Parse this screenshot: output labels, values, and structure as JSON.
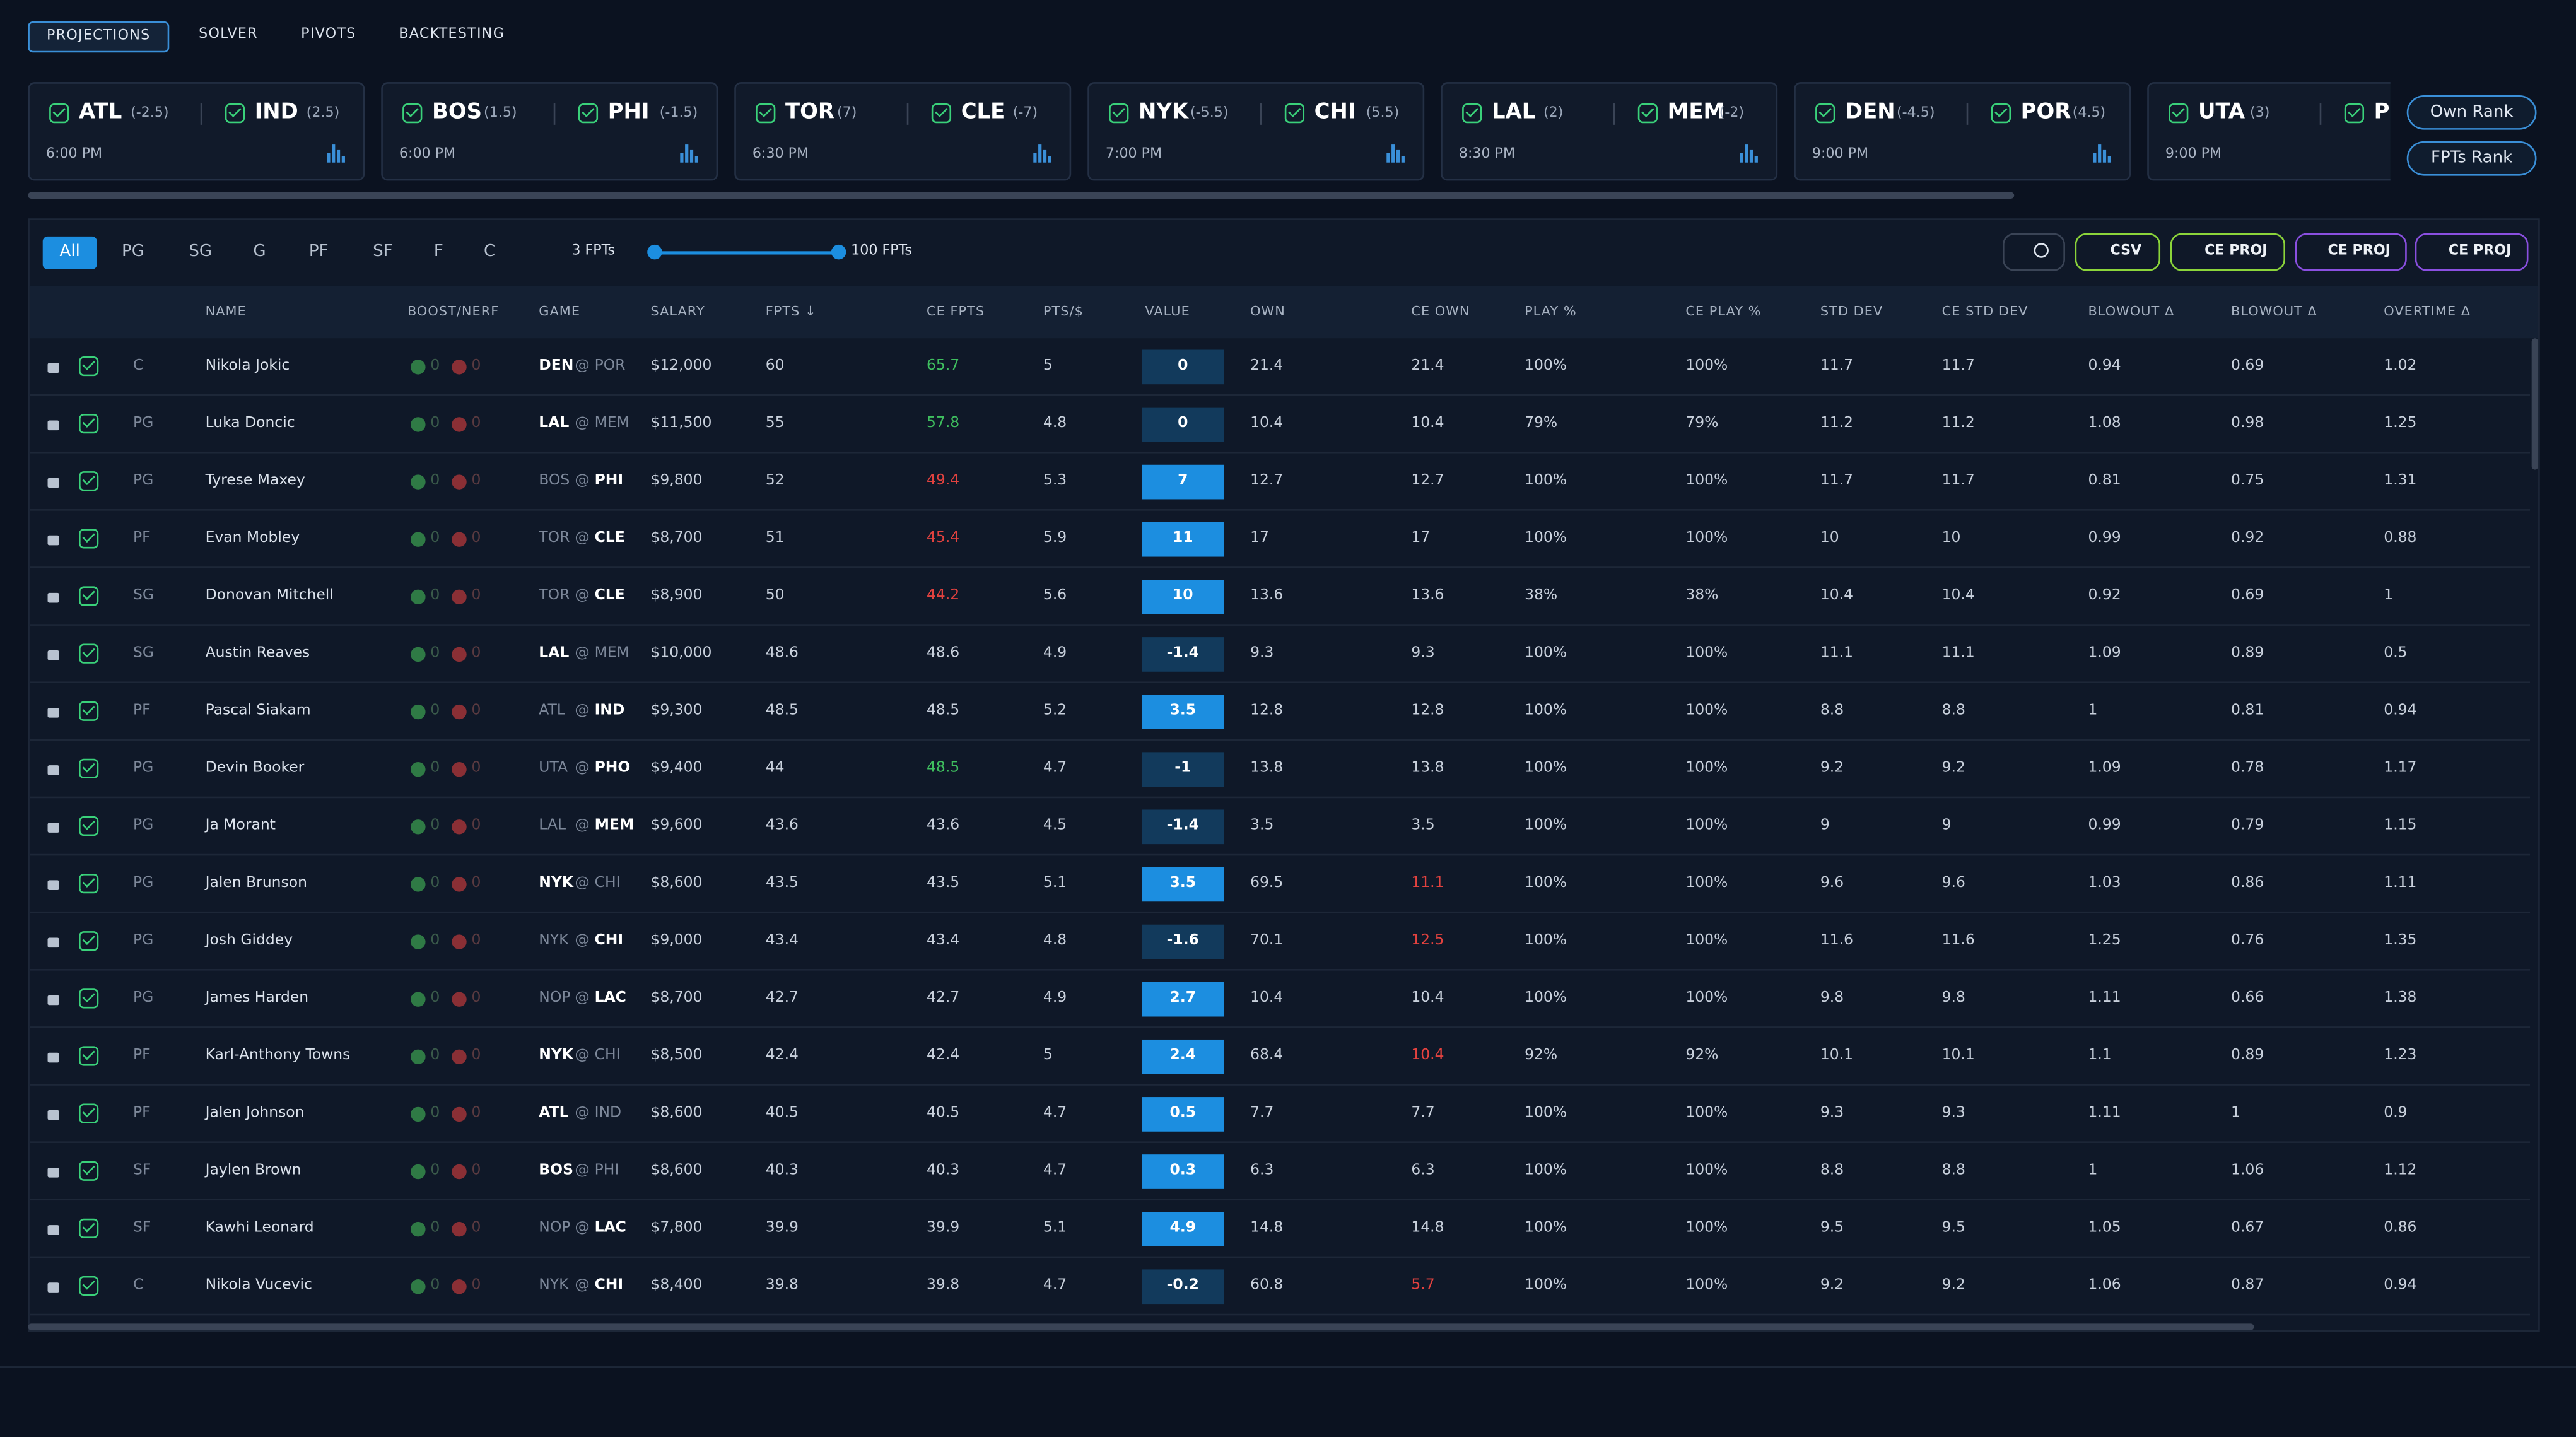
{
  "tabs": [
    "PROJECTIONS",
    "SOLVER",
    "PIVOTS",
    "BACKTESTING"
  ],
  "games": [
    {
      "teams": [
        {
          "name": "ATL",
          "spread": "(-2.5)"
        },
        {
          "name": "IND",
          "spread": "(2.5)"
        }
      ],
      "time": "6:00 PM"
    },
    {
      "teams": [
        {
          "name": "BOS",
          "spread": "(1.5)"
        },
        {
          "name": "PHI",
          "spread": "(-1.5)"
        }
      ],
      "time": "6:00 PM"
    },
    {
      "teams": [
        {
          "name": "TOR",
          "spread": "(7)"
        },
        {
          "name": "CLE",
          "spread": "(-7)"
        }
      ],
      "time": "6:30 PM"
    },
    {
      "teams": [
        {
          "name": "NYK",
          "spread": "(-5.5)"
        },
        {
          "name": "CHI",
          "spread": "(5.5)"
        }
      ],
      "time": "7:00 PM"
    },
    {
      "teams": [
        {
          "name": "LAL",
          "spread": "(2)"
        },
        {
          "name": "MEM",
          "spread": "(-2)"
        }
      ],
      "time": "8:30 PM"
    },
    {
      "teams": [
        {
          "name": "DEN",
          "spread": "(-4.5)"
        },
        {
          "name": "POR",
          "spread": "(4.5)"
        }
      ],
      "time": "9:00 PM"
    },
    {
      "teams": [
        {
          "name": "UTA",
          "spread": "(3)"
        },
        {
          "name": "P",
          "spread": ""
        }
      ],
      "time": "9:00 PM"
    }
  ],
  "rank_buttons": [
    "Own Rank",
    "FPTs Rank"
  ],
  "positions": [
    "All",
    "PG",
    "SG",
    "G",
    "PF",
    "SF",
    "F",
    "C"
  ],
  "slider": {
    "min_label": "3 FPTs",
    "max_label": "100 FPTs"
  },
  "actions": [
    "CSV",
    "CE PROJ",
    "CE PROJ",
    "CE PROJ"
  ],
  "table": {
    "game_separator": "@",
    "headers": [
      "NAME",
      "BOOST/NERF",
      "GAME",
      "SALARY",
      "FPTS ↓",
      "CE FPTS",
      "PTS/$",
      "VALUE",
      "OWN",
      "CE OWN",
      "PLAY %",
      "CE PLAY %",
      "STD DEV",
      "CE STD DEV",
      "BLOWOUT Δ",
      "BLOWOUT Δ",
      "OVERTIME Δ"
    ],
    "rows": [
      {
        "pos": "C",
        "name": "Nikola Jokic",
        "boost": 0,
        "nerf": 0,
        "game": [
          "DEN",
          "POR"
        ],
        "bold": 0,
        "salary": "$12,000",
        "cells": [
          60,
          65.7,
          5,
          0,
          21.4,
          21.4,
          "100%",
          "100%",
          11.7,
          11.7,
          0.94,
          0.69,
          1.02
        ],
        "tint": {
          "1": "green"
        }
      },
      {
        "pos": "PG",
        "name": "Luka Doncic",
        "boost": 0,
        "nerf": 0,
        "game": [
          "LAL",
          "MEM"
        ],
        "bold": 0,
        "salary": "$11,500",
        "cells": [
          55,
          57.8,
          4.8,
          0,
          10.4,
          10.4,
          "79%",
          "79%",
          11.2,
          11.2,
          1.08,
          0.98,
          1.25
        ],
        "tint": {
          "1": "green"
        }
      },
      {
        "pos": "PG",
        "name": "Tyrese Maxey",
        "boost": 0,
        "nerf": 0,
        "game": [
          "BOS",
          "PHI"
        ],
        "bold": 1,
        "salary": "$9,800",
        "cells": [
          52,
          49.4,
          5.3,
          7,
          12.7,
          12.7,
          "100%",
          "100%",
          11.7,
          11.7,
          0.81,
          0.75,
          1.31
        ],
        "tint": {
          "1": "red"
        }
      },
      {
        "pos": "PF",
        "name": "Evan Mobley",
        "boost": 0,
        "nerf": 0,
        "game": [
          "TOR",
          "CLE"
        ],
        "bold": 1,
        "salary": "$8,700",
        "cells": [
          51,
          45.4,
          5.9,
          11,
          17,
          17,
          "100%",
          "100%",
          10,
          10,
          0.99,
          0.92,
          0.88
        ],
        "tint": {
          "1": "red"
        }
      },
      {
        "pos": "SG",
        "name": "Donovan Mitchell",
        "boost": 0,
        "nerf": 0,
        "game": [
          "TOR",
          "CLE"
        ],
        "bold": 1,
        "salary": "$8,900",
        "cells": [
          50,
          44.2,
          5.6,
          10,
          13.6,
          13.6,
          "38%",
          "38%",
          10.4,
          10.4,
          0.92,
          0.69,
          1
        ],
        "tint": {
          "1": "red"
        }
      },
      {
        "pos": "SG",
        "name": "Austin Reaves",
        "boost": 0,
        "nerf": 0,
        "game": [
          "LAL",
          "MEM"
        ],
        "bold": 0,
        "salary": "$10,000",
        "cells": [
          48.6,
          48.6,
          4.9,
          -1.4,
          9.3,
          9.3,
          "100%",
          "100%",
          11.1,
          11.1,
          1.09,
          0.89,
          0.5
        ],
        "tint": {}
      },
      {
        "pos": "PF",
        "name": "Pascal Siakam",
        "boost": 0,
        "nerf": 0,
        "game": [
          "ATL",
          "IND"
        ],
        "bold": 1,
        "salary": "$9,300",
        "cells": [
          48.5,
          48.5,
          5.2,
          3.5,
          12.8,
          12.8,
          "100%",
          "100%",
          8.8,
          8.8,
          1,
          0.81,
          0.94
        ],
        "tint": {}
      },
      {
        "pos": "PG",
        "name": "Devin Booker",
        "boost": 0,
        "nerf": 0,
        "game": [
          "UTA",
          "PHO"
        ],
        "bold": 1,
        "salary": "$9,400",
        "cells": [
          44,
          48.5,
          4.7,
          -1,
          13.8,
          13.8,
          "100%",
          "100%",
          9.2,
          9.2,
          1.09,
          0.78,
          1.17
        ],
        "tint": {
          "1": "green"
        }
      },
      {
        "pos": "PG",
        "name": "Ja Morant",
        "boost": 0,
        "nerf": 0,
        "game": [
          "LAL",
          "MEM"
        ],
        "bold": 1,
        "salary": "$9,600",
        "cells": [
          43.6,
          43.6,
          4.5,
          -1.4,
          3.5,
          3.5,
          "100%",
          "100%",
          9,
          9,
          0.99,
          0.79,
          1.15
        ],
        "tint": {}
      },
      {
        "pos": "PG",
        "name": "Jalen Brunson",
        "boost": 0,
        "nerf": 0,
        "game": [
          "NYK",
          "CHI"
        ],
        "bold": 0,
        "salary": "$8,600",
        "cells": [
          43.5,
          43.5,
          5.1,
          3.5,
          69.5,
          11.1,
          "100%",
          "100%",
          9.6,
          9.6,
          1.03,
          0.86,
          1.11
        ],
        "tint": {
          "5": "red"
        }
      },
      {
        "pos": "PG",
        "name": "Josh Giddey",
        "boost": 0,
        "nerf": 0,
        "game": [
          "NYK",
          "CHI"
        ],
        "bold": 1,
        "salary": "$9,000",
        "cells": [
          43.4,
          43.4,
          4.8,
          -1.6,
          70.1,
          12.5,
          "100%",
          "100%",
          11.6,
          11.6,
          1.25,
          0.76,
          1.35
        ],
        "tint": {
          "5": "red"
        }
      },
      {
        "pos": "PG",
        "name": "James Harden",
        "boost": 0,
        "nerf": 0,
        "game": [
          "NOP",
          "LAC"
        ],
        "bold": 1,
        "salary": "$8,700",
        "cells": [
          42.7,
          42.7,
          4.9,
          2.7,
          10.4,
          10.4,
          "100%",
          "100%",
          9.8,
          9.8,
          1.11,
          0.66,
          1.38
        ],
        "tint": {}
      },
      {
        "pos": "PF",
        "name": "Karl-Anthony Towns",
        "boost": 0,
        "nerf": 0,
        "game": [
          "NYK",
          "CHI"
        ],
        "bold": 0,
        "salary": "$8,500",
        "cells": [
          42.4,
          42.4,
          5,
          2.4,
          68.4,
          10.4,
          "92%",
          "92%",
          10.1,
          10.1,
          1.1,
          0.89,
          1.23
        ],
        "tint": {
          "5": "red"
        }
      },
      {
        "pos": "PF",
        "name": "Jalen Johnson",
        "boost": 0,
        "nerf": 0,
        "game": [
          "ATL",
          "IND"
        ],
        "bold": 0,
        "salary": "$8,600",
        "cells": [
          40.5,
          40.5,
          4.7,
          0.5,
          7.7,
          7.7,
          "100%",
          "100%",
          9.3,
          9.3,
          1.11,
          1,
          0.9
        ],
        "tint": {}
      },
      {
        "pos": "SF",
        "name": "Jaylen Brown",
        "boost": 0,
        "nerf": 0,
        "game": [
          "BOS",
          "PHI"
        ],
        "bold": 0,
        "salary": "$8,600",
        "cells": [
          40.3,
          40.3,
          4.7,
          0.3,
          6.3,
          6.3,
          "100%",
          "100%",
          8.8,
          8.8,
          1,
          1.06,
          1.12
        ],
        "tint": {}
      },
      {
        "pos": "SF",
        "name": "Kawhi Leonard",
        "boost": 0,
        "nerf": 0,
        "game": [
          "NOP",
          "LAC"
        ],
        "bold": 1,
        "salary": "$7,800",
        "cells": [
          39.9,
          39.9,
          5.1,
          4.9,
          14.8,
          14.8,
          "100%",
          "100%",
          9.5,
          9.5,
          1.05,
          0.67,
          0.86
        ],
        "tint": {}
      },
      {
        "pos": "C",
        "name": "Nikola Vucevic",
        "boost": 0,
        "nerf": 0,
        "game": [
          "NYK",
          "CHI"
        ],
        "bold": 1,
        "salary": "$8,400",
        "cells": [
          39.8,
          39.8,
          4.7,
          -0.2,
          60.8,
          5.7,
          "100%",
          "100%",
          9.2,
          9.2,
          1.06,
          0.87,
          0.94
        ],
        "tint": {
          "5": "red"
        }
      }
    ]
  }
}
